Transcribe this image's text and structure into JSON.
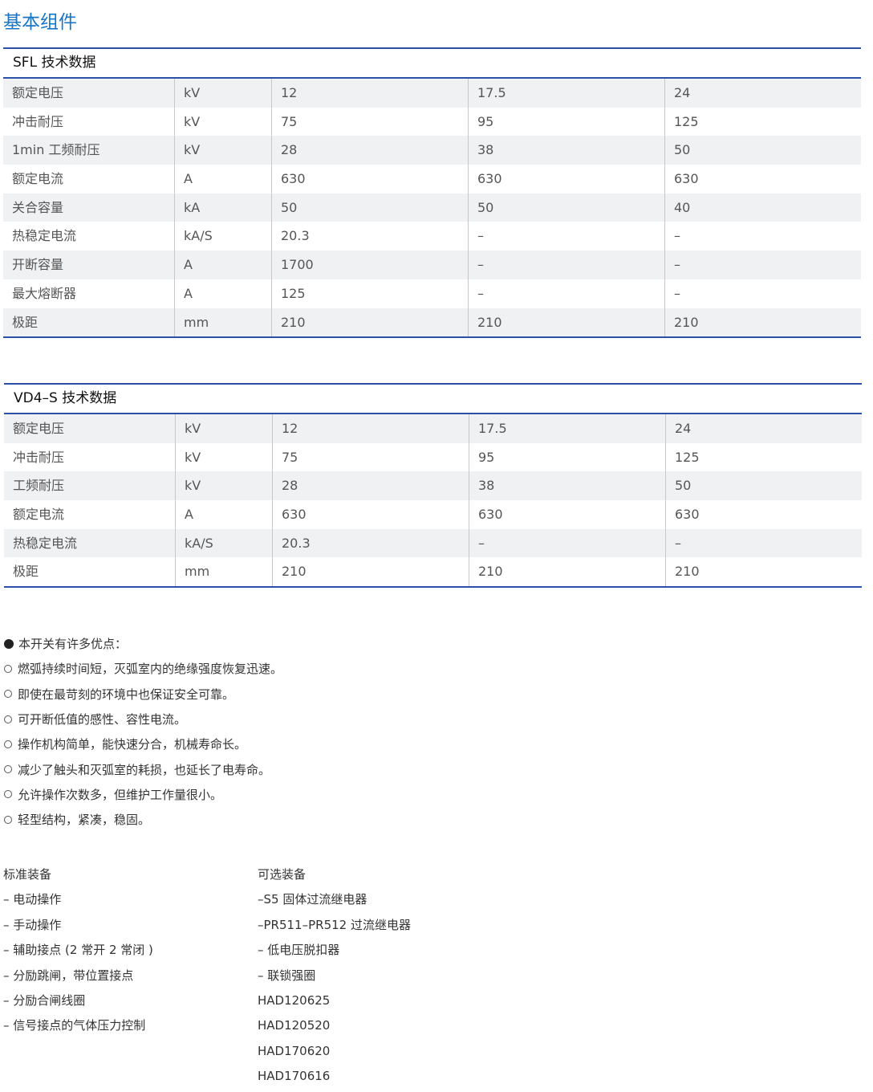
{
  "title": "基本组件",
  "sfl": {
    "caption": "SFL 技术数据",
    "rows": [
      [
        "额定电压",
        "kV",
        "12",
        "17.5",
        "24"
      ],
      [
        "冲击耐压",
        "kV",
        "75",
        "95",
        "125"
      ],
      [
        "1min 工频耐压",
        "kV",
        "28",
        "38",
        "50"
      ],
      [
        "额定电流",
        "A",
        "630",
        "630",
        "630"
      ],
      [
        "关合容量",
        "kA",
        "50",
        "50",
        "40"
      ],
      [
        "热稳定电流",
        "kA/S",
        "20.3",
        "–",
        "–"
      ],
      [
        "开断容量",
        "A",
        "1700",
        "–",
        "–"
      ],
      [
        "最大熔断器",
        "A",
        "125",
        "–",
        "–"
      ],
      [
        "极距",
        "mm",
        "210",
        "210",
        "210"
      ]
    ]
  },
  "vd4": {
    "caption": "VD4–S 技术数据",
    "rows": [
      [
        "额定电压",
        "kV",
        "12",
        "17.5",
        "24"
      ],
      [
        "冲击耐压",
        "kV",
        "75",
        "95",
        "125"
      ],
      [
        "工频耐压",
        "kV",
        "28",
        "38",
        "50"
      ],
      [
        "额定电流",
        "A",
        "630",
        "630",
        "630"
      ],
      [
        "热稳定电流",
        "kA/S",
        "20.3",
        "–",
        "–"
      ],
      [
        "极距",
        "mm",
        "210",
        "210",
        "210"
      ]
    ]
  },
  "advantages": {
    "heading": "本开关有许多优点：",
    "items": [
      "燃弧持续时间短，灭弧室内的绝缘强度恢复迅速。",
      "即使在最苛刻的环境中也保证安全可靠。",
      "可开断低值的感性、容性电流。",
      "操作机构简单，能快速分合，机械寿命长。",
      "减少了触头和灭弧室的耗损，也延长了电寿命。",
      "允许操作次数多，但维护工作量很小。",
      "轻型结构，紧凑，稳固。"
    ]
  },
  "standard": {
    "heading": "标准装备",
    "items": [
      "– 电动操作",
      "– 手动操作",
      "– 辅助接点 (2 常开 2 常闭 )",
      "– 分励跳闸，带位置接点",
      "– 分励合闸线圈",
      "– 信号接点的气体压力控制"
    ]
  },
  "optional": {
    "heading": "可选装备",
    "items": [
      "–S5 固体过流继电器",
      "–PR511–PR512 过流继电器",
      "– 低电压脱扣器",
      "– 联锁强圈",
      "HAD120625",
      "HAD120520",
      "HAD170620",
      "HAD170616"
    ]
  }
}
